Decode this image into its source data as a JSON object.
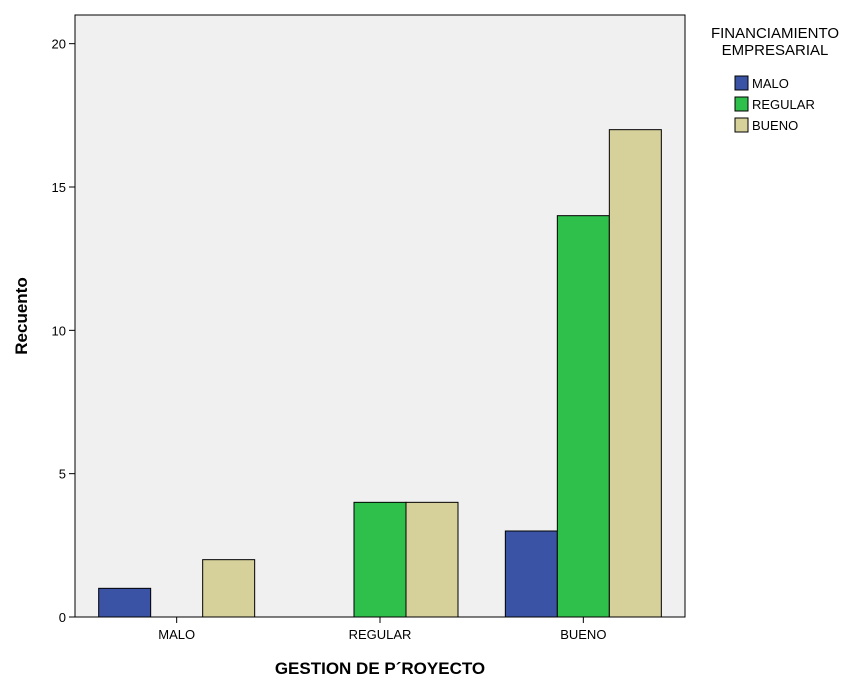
{
  "chart_data": {
    "type": "bar",
    "xlabel": "GESTION DE P´ROYECTO",
    "ylabel": "Recuento",
    "categories": [
      "MALO",
      "REGULAR",
      "BUENO"
    ],
    "series": [
      {
        "name": "MALO",
        "color": "#3a53a4",
        "values": [
          1,
          0,
          3
        ]
      },
      {
        "name": "REGULAR",
        "color": "#2fbf4b",
        "values": [
          0,
          4,
          14
        ]
      },
      {
        "name": "BUENO",
        "color": "#d6d09a",
        "values": [
          2,
          4,
          17
        ]
      }
    ],
    "ylim": [
      0,
      21
    ],
    "yticks": [
      0,
      5,
      10,
      15,
      20
    ],
    "grid": false,
    "plot_background": "#f0f0f0",
    "legend": {
      "title_lines": [
        "FINANCIAMIENTO",
        "EMPRESARIAL"
      ],
      "placement": "top-right-outside"
    }
  }
}
